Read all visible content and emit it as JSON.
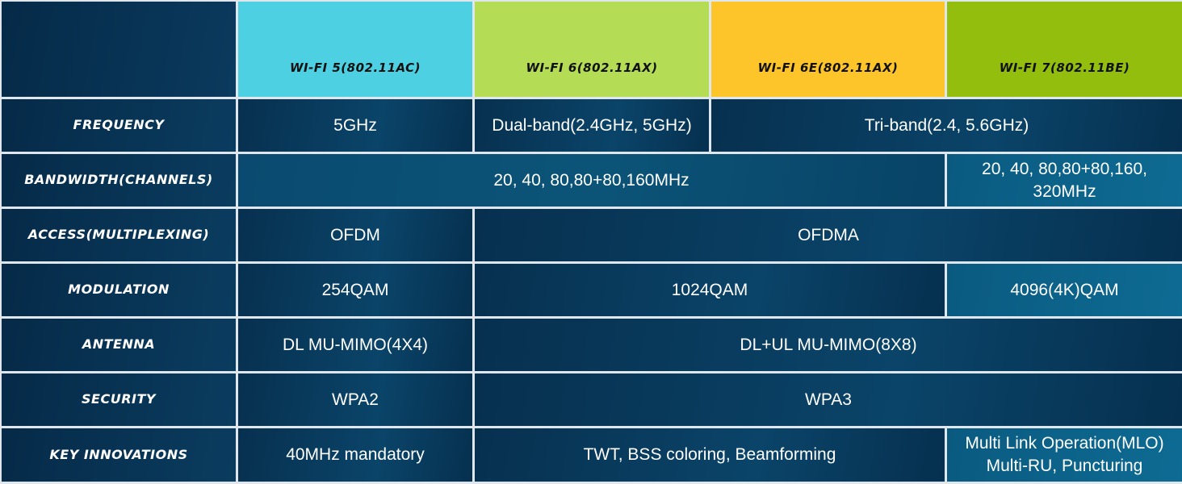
{
  "headers": [
    {
      "label": "Wi-Fi 5(802.11ac)",
      "color": "#4dd0e2"
    },
    {
      "label": "Wi-Fi 6(802.11ax)",
      "color": "#b5dc55"
    },
    {
      "label": "Wi-Fi 6E(802.11ax)",
      "color": "#fec52a"
    },
    {
      "label": "Wi-Fi 7(802.11be)",
      "color": "#94be0e"
    }
  ],
  "rows": {
    "frequency": {
      "label": "Frequency",
      "wifi5": "5GHz",
      "wifi6": "Dual-band(2.4GHz, 5GHz)",
      "wifi6e_7": "Tri-band(2.4, 5.6GHz)"
    },
    "bandwidth": {
      "label": "Bandwidth(channels)",
      "wifi5_6e": "20, 40, 80,80+80,160MHz",
      "wifi7": "20, 40, 80,80+80,160, 320MHz"
    },
    "access": {
      "label": "Access(multiplexing)",
      "wifi5": "OFDM",
      "wifi6_7": "OFDMA"
    },
    "modulation": {
      "label": "Modulation",
      "wifi5": "254QAM",
      "wifi6_6e": "1024QAM",
      "wifi7": "4096(4K)QAM"
    },
    "antenna": {
      "label": "Antenna",
      "wifi5": "DL MU-MIMO(4X4)",
      "wifi6_7": "DL+UL MU-MIMO(8X8)"
    },
    "security": {
      "label": "Security",
      "wifi5": "WPA2",
      "wifi6_7": "WPA3"
    },
    "innovations": {
      "label": "Key innovations",
      "wifi5": "40MHz mandatory",
      "wifi6_6e": "TWT, BSS coloring, Beamforming",
      "wifi7_line1": "Multi Link Operation(MLO)",
      "wifi7_line2": "Multi-RU, Puncturing"
    }
  }
}
